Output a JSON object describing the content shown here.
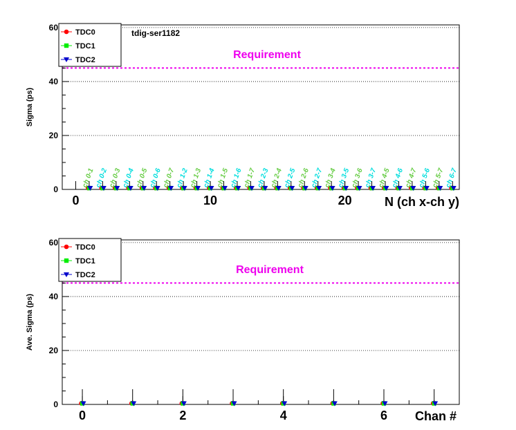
{
  "colors": {
    "tdc0": "#ff0000",
    "tdc1": "#00ee00",
    "tdc2": "#0000cc",
    "requirement": "#ee00ee",
    "label_green": "#66cc44",
    "label_cyan": "#00dddd"
  },
  "chart_data": [
    {
      "type": "scatter",
      "board_label": "tdig-ser1182",
      "ylabel": "Sigma (ps)",
      "xlabel": "N (ch x-ch y)",
      "ylim": [
        0,
        61
      ],
      "xlim": [
        -1,
        28.5
      ],
      "x_ticks": [
        "0",
        "10",
        "20"
      ],
      "y_ticks": [
        "0",
        "20",
        "40",
        "60"
      ],
      "grid_y": true,
      "legend_position": "top-left",
      "requirement": {
        "label": "Requirement",
        "value": 45
      },
      "series": [
        {
          "name": "TDC0",
          "marker": "circle",
          "values": [
            0.5,
            0.5,
            0.5,
            0.5,
            0.5,
            0.5,
            0.5,
            0.5,
            0.5,
            0.5,
            0.5,
            0.5,
            0.5,
            0.5,
            0.5,
            0.5,
            0.5,
            0.5,
            0.5,
            0.5,
            0.5,
            0.5,
            0.5,
            0.5,
            0.5,
            0.5,
            0.5,
            0.5
          ]
        },
        {
          "name": "TDC1",
          "marker": "square",
          "values": [
            0.5,
            0.5,
            0.5,
            0.5,
            0.5,
            0.5,
            0.5,
            0.5,
            0.5,
            0.5,
            0.5,
            0.5,
            0.5,
            0.5,
            0.5,
            0.5,
            0.5,
            0.5,
            0.5,
            0.5,
            0.5,
            0.5,
            0.5,
            0.5,
            0.5,
            0.5,
            0.5,
            0.5
          ]
        },
        {
          "name": "TDC2",
          "marker": "triangle-down",
          "values": [
            0.5,
            0.5,
            0.5,
            0.5,
            0.5,
            0.5,
            0.5,
            0.5,
            0.5,
            0.5,
            0.5,
            0.5,
            0.5,
            0.5,
            0.5,
            0.5,
            0.5,
            0.5,
            0.5,
            0.5,
            0.5,
            0.5,
            0.5,
            0.5,
            0.5,
            0.5,
            0.5,
            0.5
          ]
        }
      ],
      "x": [
        1,
        2,
        3,
        4,
        5,
        6,
        7,
        8,
        9,
        10,
        11,
        12,
        13,
        14,
        15,
        16,
        17,
        18,
        19,
        20,
        21,
        22,
        23,
        24,
        25,
        26,
        27,
        28
      ],
      "point_labels": [
        "ch 0-1",
        "ch 0-2",
        "ch 0-3",
        "ch 0-4",
        "ch 0-5",
        "ch 0-6",
        "ch 0-7",
        "ch 1-2",
        "ch 1-3",
        "ch 1-4",
        "ch 1-5",
        "ch 1-6",
        "ch 1-7",
        "ch 2-3",
        "ch 2-4",
        "ch 2-5",
        "ch 2-6",
        "ch 2-7",
        "ch 3-4",
        "ch 3-5",
        "ch 3-6",
        "ch 3-7",
        "ch 4-5",
        "ch 4-6",
        "ch 4-7",
        "ch 5-6",
        "ch 5-7",
        "ch 6-7"
      ]
    },
    {
      "type": "scatter",
      "ylabel": "Ave. Sigma (ps)",
      "xlabel": "Chan #",
      "ylim": [
        0,
        61
      ],
      "xlim": [
        -0.4,
        7.5
      ],
      "x_ticks": [
        "0",
        "2",
        "4",
        "6"
      ],
      "y_ticks": [
        "0",
        "20",
        "40",
        "60"
      ],
      "grid_y": true,
      "legend_position": "top-left",
      "requirement": {
        "label": "Requirement",
        "value": 45
      },
      "x": [
        0,
        1,
        2,
        3,
        4,
        5,
        6,
        7
      ],
      "series": [
        {
          "name": "TDC0",
          "marker": "circle",
          "values": [
            0.4,
            0.4,
            0.4,
            0.4,
            0.4,
            0.4,
            0.4,
            0.4
          ]
        },
        {
          "name": "TDC1",
          "marker": "square",
          "values": [
            0.4,
            0.4,
            0.4,
            0.4,
            0.4,
            0.4,
            0.4,
            0.4
          ]
        },
        {
          "name": "TDC2",
          "marker": "triangle-down",
          "values": [
            0.4,
            0.4,
            0.4,
            0.4,
            0.4,
            0.4,
            0.4,
            0.4
          ]
        }
      ]
    }
  ]
}
